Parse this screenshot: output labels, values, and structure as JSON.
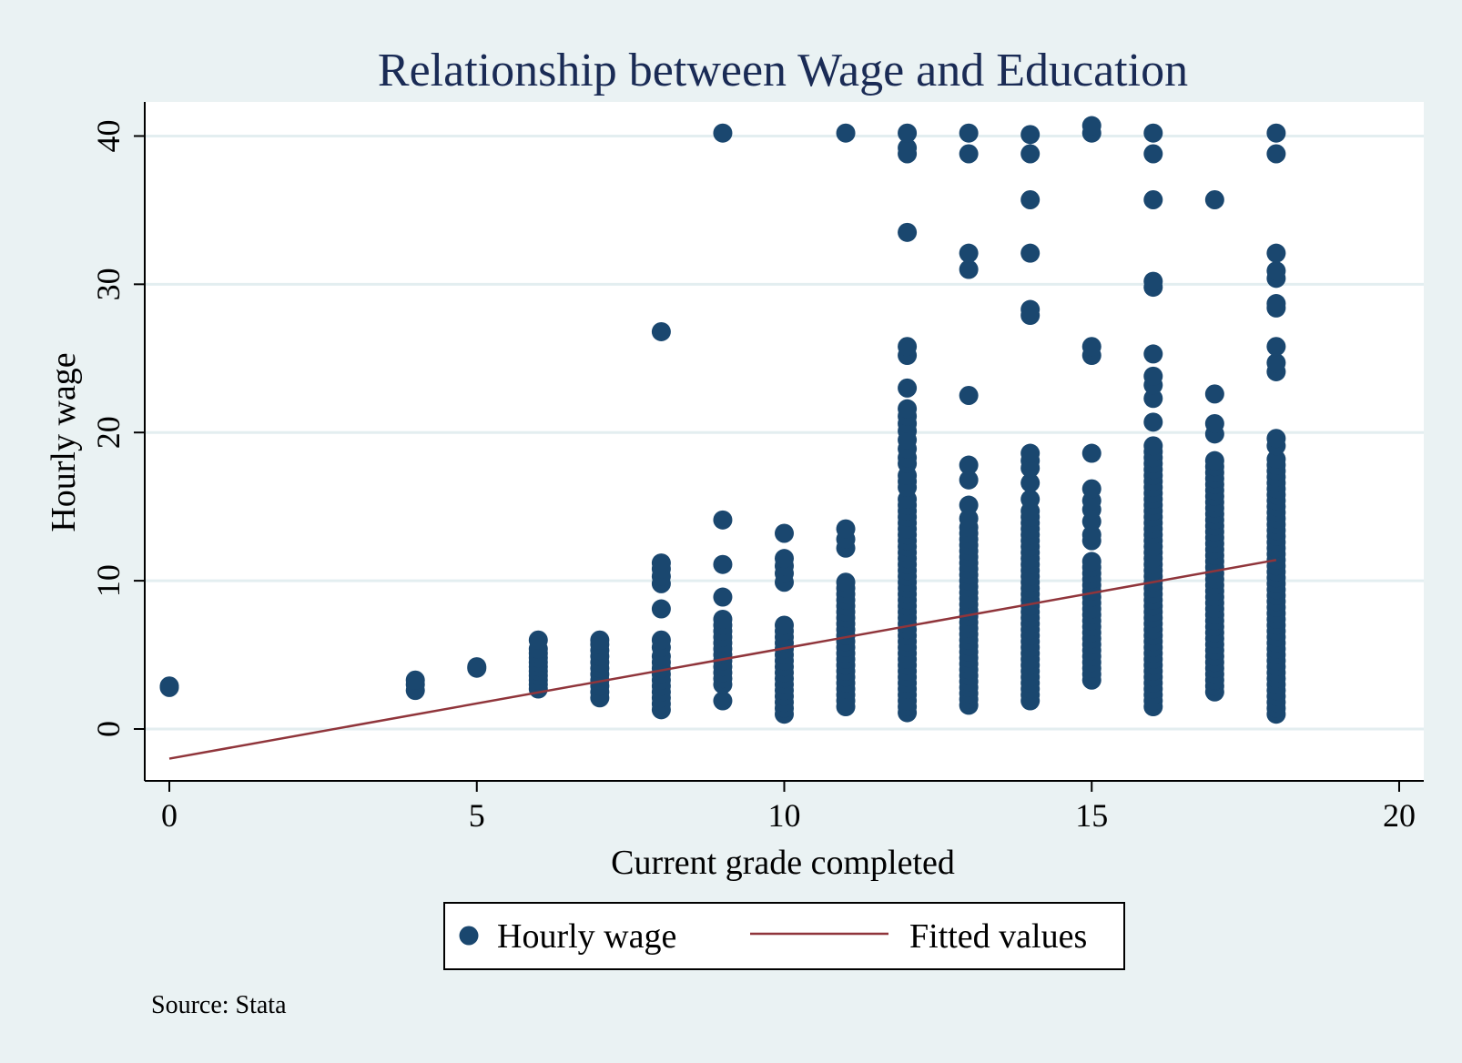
{
  "chart_data": {
    "type": "scatter",
    "title": "Relationship between Wage and Education",
    "xlabel": "Current grade completed",
    "ylabel": "Hourly wage",
    "xlim": [
      -0.4,
      20.4
    ],
    "ylim": [
      -3.5,
      42.3
    ],
    "xticks": [
      0,
      5,
      10,
      15,
      20
    ],
    "yticks": [
      0,
      10,
      20,
      30,
      40
    ],
    "grid": "horizontal",
    "legend_position": "bottom",
    "note": "Source: Stata",
    "colors": {
      "points": "#1a476f",
      "fit": "#90353b",
      "plot_background": "#ffffff",
      "page_background": "#eaf2f3",
      "grid": "#e3eef0"
    },
    "series": [
      {
        "name": "Hourly wage",
        "kind": "scatter",
        "groups": [
          {
            "x": 0,
            "y": [
              2.8,
              2.9
            ]
          },
          {
            "x": 4,
            "y": [
              2.6,
              3.0,
              3.3
            ]
          },
          {
            "x": 5,
            "y": [
              4.1,
              4.2
            ]
          },
          {
            "x": 6,
            "y": [
              2.7,
              3.0,
              3.3,
              3.6,
              3.9,
              4.2,
              4.5,
              4.8,
              5.1,
              5.4,
              6.0
            ]
          },
          {
            "x": 7,
            "y": [
              2.1,
              2.5,
              2.9,
              3.3,
              3.7,
              4.1,
              4.5,
              4.9,
              5.3,
              5.7,
              6.0
            ]
          },
          {
            "x": 8,
            "y": [
              1.3,
              1.7,
              2.1,
              2.5,
              2.9,
              3.3,
              3.7,
              4.1,
              4.5,
              4.9,
              5.5,
              6.0,
              8.1,
              9.8,
              10.3,
              10.8,
              11.2,
              26.8
            ]
          },
          {
            "x": 9,
            "y": [
              1.9,
              3.0,
              3.4,
              3.8,
              4.2,
              4.6,
              5.0,
              5.4,
              5.8,
              6.2,
              6.6,
              7.0,
              7.4,
              8.9,
              11.1,
              14.1,
              40.2
            ]
          },
          {
            "x": 10,
            "y": [
              1.0,
              1.4,
              1.8,
              2.2,
              2.6,
              3.0,
              3.4,
              3.8,
              4.2,
              4.6,
              5.0,
              5.4,
              5.8,
              6.2,
              6.6,
              7.0,
              9.9,
              10.5,
              11.0,
              11.5,
              13.2
            ]
          },
          {
            "x": 11,
            "y": [
              1.5,
              1.9,
              2.3,
              2.7,
              3.1,
              3.5,
              3.9,
              4.3,
              4.7,
              5.1,
              5.5,
              5.9,
              6.3,
              6.7,
              7.1,
              7.5,
              7.9,
              8.3,
              8.7,
              9.1,
              9.5,
              9.9,
              12.2,
              12.8,
              13.5,
              40.2
            ]
          },
          {
            "x": 12,
            "y": [
              1.1,
              1.5,
              1.9,
              2.3,
              2.7,
              3.1,
              3.5,
              3.9,
              4.3,
              4.7,
              5.1,
              5.5,
              5.9,
              6.3,
              6.7,
              7.1,
              7.5,
              7.9,
              8.3,
              8.7,
              9.1,
              9.5,
              9.9,
              10.3,
              10.7,
              11.1,
              11.5,
              11.9,
              12.3,
              12.7,
              13.1,
              13.5,
              13.9,
              14.3,
              14.7,
              15.1,
              15.5,
              16.3,
              16.7,
              17.1,
              17.9,
              18.3,
              18.9,
              19.5,
              20.1,
              20.6,
              21.1,
              21.6,
              23.0,
              25.2,
              25.8,
              33.5,
              38.8,
              39.2,
              40.2
            ]
          },
          {
            "x": 13,
            "y": [
              1.6,
              2.0,
              2.4,
              2.8,
              3.2,
              3.6,
              4.0,
              4.4,
              4.8,
              5.2,
              5.6,
              6.0,
              6.4,
              6.8,
              7.2,
              7.6,
              8.0,
              8.4,
              8.8,
              9.2,
              9.6,
              10.0,
              10.4,
              10.8,
              11.2,
              11.6,
              12.0,
              12.4,
              12.8,
              13.2,
              13.6,
              14.2,
              15.1,
              16.8,
              17.8,
              22.5,
              31.0,
              32.1,
              38.8,
              40.2
            ]
          },
          {
            "x": 14,
            "y": [
              1.9,
              2.3,
              2.7,
              3.1,
              3.5,
              3.9,
              4.3,
              4.7,
              5.1,
              5.5,
              5.9,
              6.3,
              6.7,
              7.1,
              7.5,
              7.9,
              8.3,
              8.7,
              9.1,
              9.5,
              9.9,
              10.3,
              10.7,
              11.1,
              11.5,
              11.9,
              12.3,
              12.7,
              13.1,
              13.5,
              13.9,
              14.3,
              14.7,
              15.5,
              16.6,
              17.6,
              18.1,
              18.6,
              27.9,
              28.3,
              32.1,
              35.7,
              38.8,
              40.1
            ]
          },
          {
            "x": 15,
            "y": [
              3.3,
              3.7,
              4.1,
              4.5,
              4.9,
              5.3,
              5.7,
              6.1,
              6.5,
              6.9,
              7.3,
              7.7,
              8.1,
              8.5,
              8.9,
              9.3,
              9.7,
              10.1,
              10.5,
              10.9,
              11.3,
              12.7,
              13.1,
              14.0,
              14.8,
              15.4,
              16.2,
              18.6,
              25.2,
              25.8,
              40.2,
              40.7
            ]
          },
          {
            "x": 16,
            "y": [
              1.5,
              1.9,
              2.3,
              2.7,
              3.1,
              3.5,
              3.9,
              4.3,
              4.7,
              5.1,
              5.5,
              5.9,
              6.3,
              6.7,
              7.1,
              7.5,
              7.9,
              8.3,
              8.7,
              9.1,
              9.5,
              9.9,
              10.3,
              10.7,
              11.1,
              11.5,
              11.9,
              12.3,
              12.7,
              13.1,
              13.5,
              13.9,
              14.3,
              14.7,
              15.1,
              15.5,
              15.9,
              16.3,
              16.7,
              17.1,
              17.5,
              17.9,
              18.3,
              18.7,
              19.1,
              20.7,
              22.3,
              23.2,
              23.8,
              25.3,
              29.8,
              30.2,
              35.7,
              38.8,
              40.2
            ]
          },
          {
            "x": 17,
            "y": [
              2.5,
              2.9,
              3.3,
              3.7,
              4.1,
              4.5,
              4.9,
              5.3,
              5.7,
              6.1,
              6.5,
              6.9,
              7.3,
              7.7,
              8.1,
              8.5,
              8.9,
              9.3,
              9.7,
              10.1,
              10.5,
              10.9,
              11.3,
              11.7,
              12.1,
              12.5,
              12.9,
              13.3,
              13.7,
              14.1,
              14.5,
              14.9,
              15.3,
              15.7,
              16.1,
              16.5,
              16.9,
              17.3,
              17.7,
              18.1,
              19.9,
              20.6,
              22.6,
              35.7
            ]
          },
          {
            "x": 18,
            "y": [
              1.0,
              1.4,
              1.8,
              2.2,
              2.6,
              3.0,
              3.4,
              3.8,
              4.2,
              4.6,
              5.0,
              5.4,
              5.8,
              6.2,
              6.6,
              7.0,
              7.4,
              7.8,
              8.2,
              8.6,
              9.0,
              9.4,
              9.8,
              10.2,
              10.6,
              11.0,
              11.4,
              11.8,
              12.2,
              12.6,
              13.0,
              13.4,
              13.8,
              14.2,
              14.6,
              15.0,
              15.4,
              15.8,
              16.2,
              16.6,
              17.0,
              17.4,
              17.8,
              18.2,
              19.1,
              19.6,
              24.1,
              24.7,
              25.8,
              28.4,
              28.7,
              30.4,
              30.9,
              32.1,
              38.8,
              40.2
            ]
          }
        ]
      },
      {
        "name": "Fitted values",
        "kind": "line",
        "x": [
          0,
          18
        ],
        "y": [
          -2.0,
          11.4
        ]
      }
    ]
  }
}
